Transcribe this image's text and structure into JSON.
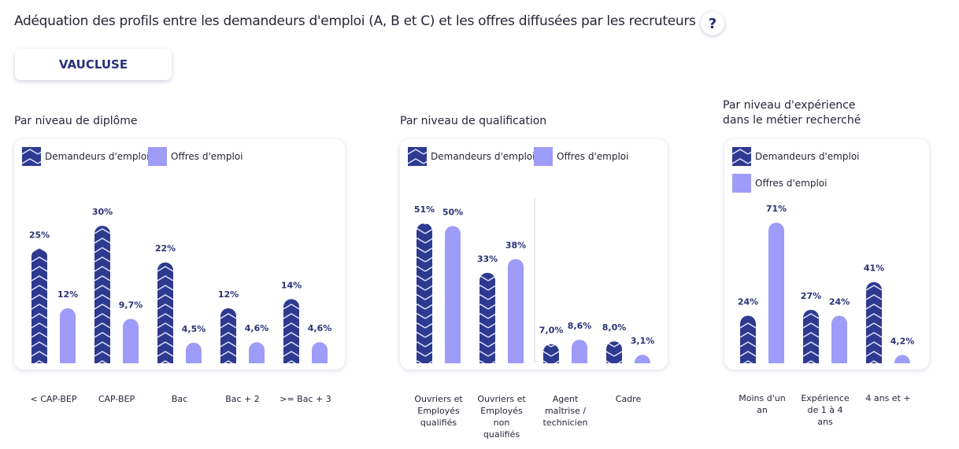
{
  "header": {
    "title": "Adéquation des profils entre les demandeurs d'emploi (A, B et C) et les offres diffusées par les recruteurs",
    "help_label": "?"
  },
  "region_button": {
    "label": "VAUCLUSE"
  },
  "legend": {
    "seekers": "Demandeurs d'emploi",
    "offers": "Offres d'emploi"
  },
  "colors": {
    "seekers": "#2e3a8f",
    "offers": "#9d9cf8",
    "text": "#262638"
  },
  "chart_data": [
    {
      "type": "bar",
      "title": "Par niveau de diplôme",
      "categories": [
        "< CAP-BEP",
        "CAP-BEP",
        "Bac",
        "Bac + 2",
        ">= Bac + 3"
      ],
      "series": [
        {
          "name": "Demandeurs d'emploi",
          "values": [
            25,
            30,
            22,
            12,
            14
          ],
          "labels": [
            "25%",
            "30%",
            "22%",
            "12%",
            "14%"
          ]
        },
        {
          "name": "Offres d'emploi",
          "values": [
            12,
            9.7,
            4.5,
            4.6,
            4.6
          ],
          "labels": [
            "12%",
            "9,7%",
            "4,5%",
            "4,6%",
            "4,6%"
          ]
        }
      ]
    },
    {
      "type": "bar",
      "title": "Par niveau de qualification",
      "categories": [
        "Ouvriers et Employés qualifiés",
        "Ouvriers et Employés non qualifiés",
        "Agent maîtrise / technicien",
        "Cadre"
      ],
      "series": [
        {
          "name": "Demandeurs d'emploi",
          "values": [
            51,
            33,
            7.0,
            8.0
          ],
          "labels": [
            "51%",
            "33%",
            "7,0%",
            "8,0%"
          ]
        },
        {
          "name": "Offres d'emploi",
          "values": [
            50,
            38,
            8.6,
            3.1
          ],
          "labels": [
            "50%",
            "38%",
            "8,6%",
            "3,1%"
          ]
        }
      ]
    },
    {
      "type": "bar",
      "title": "Par niveau d'expérience dans le métier recherché",
      "categories": [
        "Moins d'un an",
        "Expérience de 1 à 4 ans",
        "4 ans et +"
      ],
      "series": [
        {
          "name": "Demandeurs d'emploi",
          "values": [
            24,
            27,
            41
          ],
          "labels": [
            "24%",
            "27%",
            "41%"
          ]
        },
        {
          "name": "Offres d'emploi",
          "values": [
            71,
            24,
            4.2
          ],
          "labels": [
            "71%",
            "24%",
            "4,2%"
          ]
        }
      ]
    }
  ]
}
